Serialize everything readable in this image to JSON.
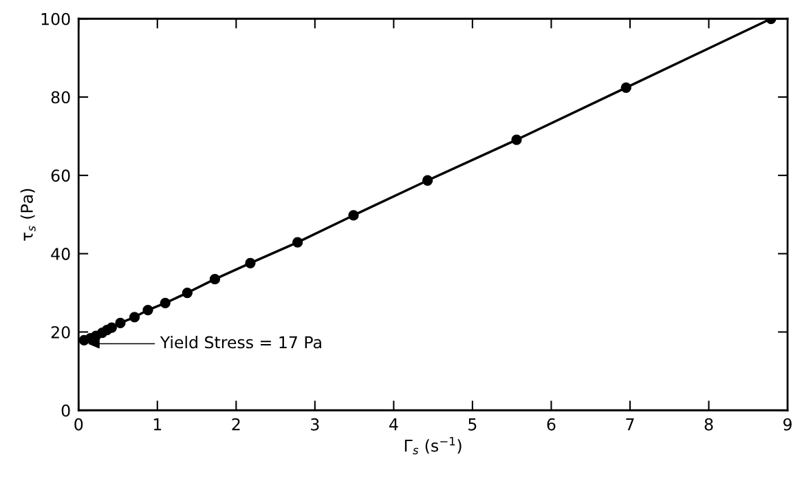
{
  "chart_data": {
    "type": "line",
    "xlabel": "Γ$_{s}$ (s$^{−1}$)",
    "ylabel": "τ$_{s}$ (Pa)",
    "x": [
      0.07,
      0.15,
      0.22,
      0.3,
      0.36,
      0.42,
      0.53,
      0.71,
      0.88,
      1.1,
      1.38,
      1.73,
      2.18,
      2.78,
      3.49,
      4.43,
      5.56,
      6.95,
      8.79
    ],
    "series": [
      {
        "color": "#000000",
        "values": [
          17.9,
          18.4,
          19.0,
          19.8,
          20.5,
          21.1,
          22.3,
          23.8,
          25.6,
          27.4,
          30.0,
          33.5,
          37.6,
          42.9,
          49.8,
          58.7,
          69.1,
          82.4,
          100
        ]
      }
    ],
    "marker": "circle",
    "line_style": "solid",
    "grid": false,
    "legend": false,
    "xlim": [
      0,
      9
    ],
    "xticks": [
      0,
      1,
      2,
      3,
      4,
      5,
      6,
      7,
      8,
      9
    ],
    "ylim": [
      0,
      100
    ],
    "yticks": [
      0,
      20,
      40,
      60,
      80,
      100
    ],
    "annotations": [
      "Yield Stress = 17 Pa"
    ]
  }
}
